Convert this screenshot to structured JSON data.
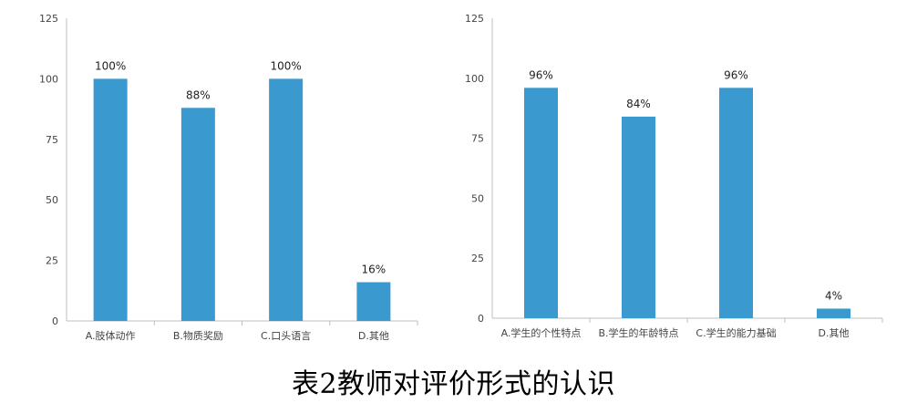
{
  "caption": "表2教师对评价形式的认识",
  "colors": {
    "bar": "#3A9AD0",
    "axis": "#bfbfbf",
    "text": "#222222",
    "label": "#444444"
  },
  "chart_data": [
    {
      "type": "bar",
      "categories": [
        "A.肢体动作",
        "B.物质奖励",
        "C.口头语言",
        "D.其他"
      ],
      "values": [
        100,
        88,
        100,
        16
      ],
      "value_labels": [
        "100%",
        "88%",
        "100%",
        "16%"
      ],
      "yticks": [
        "0",
        "25",
        "50",
        "75",
        "100",
        "125"
      ],
      "ylim": [
        0,
        125
      ],
      "grid": false,
      "title": "",
      "xlabel": "",
      "ylabel": ""
    },
    {
      "type": "bar",
      "categories": [
        "A.学生的个性特点",
        "B.学生的年龄特点",
        "C.学生的能力基础",
        "D.其他"
      ],
      "values": [
        96,
        84,
        96,
        4
      ],
      "value_labels": [
        "96%",
        "84%",
        "96%",
        "4%"
      ],
      "yticks": [
        "0",
        "25",
        "50",
        "75",
        "100",
        "125"
      ],
      "ylim": [
        0,
        125
      ],
      "grid": false,
      "title": "",
      "xlabel": "",
      "ylabel": ""
    }
  ]
}
